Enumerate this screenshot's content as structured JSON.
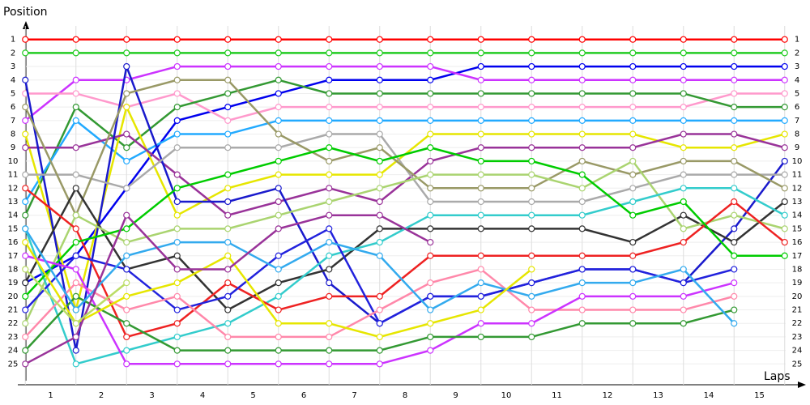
{
  "chart_data": {
    "type": "line",
    "y_label": "Position",
    "x_label": "Laps",
    "x": [
      0.5,
      1.5,
      2.5,
      3.5,
      4.5,
      5.5,
      6.5,
      7.5,
      8.5,
      9.5,
      10.5,
      11.5,
      12.5,
      13.5,
      14.5,
      15.5
    ],
    "xlim": [
      0,
      16
    ],
    "xticks": [
      1,
      2,
      3,
      4,
      5,
      6,
      7,
      8,
      9,
      10,
      11,
      12,
      13,
      14,
      15
    ],
    "ylim": [
      0,
      26
    ],
    "y_inverted": true,
    "yticks": [
      1,
      2,
      3,
      4,
      5,
      6,
      7,
      8,
      9,
      10,
      11,
      12,
      13,
      14,
      15,
      16,
      17,
      18,
      19,
      20,
      21,
      22,
      23,
      24,
      25
    ],
    "grid": true,
    "series": [
      {
        "color": "#ff0000",
        "values": [
          1,
          1,
          1,
          1,
          1,
          1,
          1,
          1,
          1,
          1,
          1,
          1,
          1,
          1,
          1,
          1
        ]
      },
      {
        "color": "#22cc22",
        "values": [
          2,
          2,
          2,
          2,
          2,
          2,
          2,
          2,
          2,
          2,
          2,
          2,
          2,
          2,
          2,
          2
        ]
      },
      {
        "color": "#0000ee",
        "values": [
          19,
          17,
          12,
          7,
          6,
          5,
          4,
          4,
          4,
          3,
          3,
          3,
          3,
          3,
          3,
          3
        ]
      },
      {
        "color": "#cc33ff",
        "values": [
          7,
          4,
          4,
          3,
          3,
          3,
          3,
          3,
          3,
          4,
          4,
          4,
          4,
          4,
          4,
          4
        ]
      },
      {
        "color": "#ff99cc",
        "values": [
          5,
          5,
          6,
          5,
          7,
          6,
          6,
          6,
          6,
          6,
          6,
          6,
          6,
          6,
          5,
          5
        ]
      },
      {
        "color": "#339933",
        "values": [
          14,
          6,
          9,
          6,
          5,
          4,
          5,
          5,
          5,
          5,
          5,
          5,
          5,
          5,
          6,
          6
        ]
      },
      {
        "color": "#22aaff",
        "values": [
          13,
          7,
          10,
          8,
          8,
          7,
          7,
          7,
          7,
          7,
          7,
          7,
          7,
          7,
          7,
          7
        ]
      },
      {
        "color": "#e6e600",
        "values": [
          8,
          21,
          6,
          14,
          12,
          11,
          11,
          11,
          8,
          8,
          8,
          8,
          8,
          9,
          9,
          8
        ]
      },
      {
        "color": "#993399",
        "values": [
          9,
          9,
          8,
          11,
          14,
          13,
          12,
          13,
          10,
          9,
          9,
          9,
          9,
          8,
          8,
          9
        ]
      },
      {
        "color": "#1a1acc",
        "values": [
          4,
          24,
          3,
          13,
          13,
          12,
          19,
          22,
          20,
          20,
          19,
          18,
          18,
          19,
          15,
          10
        ]
      },
      {
        "color": "#aaaaaa",
        "values": [
          11,
          11,
          12,
          9,
          9,
          9,
          8,
          8,
          13,
          13,
          13,
          13,
          12,
          11,
          11,
          11
        ]
      },
      {
        "color": "#999966",
        "values": [
          6,
          14,
          5,
          4,
          4,
          8,
          10,
          9,
          12,
          12,
          12,
          10,
          11,
          10,
          10,
          12
        ]
      },
      {
        "color": "#333333",
        "values": [
          19,
          12,
          18,
          17,
          21,
          19,
          18,
          15,
          15,
          15,
          15,
          15,
          16,
          14,
          16,
          13
        ]
      },
      {
        "color": "#aad470",
        "values": [
          22,
          14,
          16,
          15,
          15,
          14,
          13,
          12,
          11,
          11,
          11,
          12,
          10,
          15,
          14,
          15
        ]
      },
      {
        "color": "#33cccc",
        "values": [
          15,
          25,
          24,
          23,
          22,
          20,
          17,
          16,
          14,
          14,
          14,
          14,
          13,
          12,
          12,
          14
        ]
      },
      {
        "color": "#ee2222",
        "values": [
          12,
          15,
          23,
          22,
          19,
          21,
          20,
          20,
          17,
          17,
          17,
          17,
          17,
          16,
          13,
          16
        ]
      },
      {
        "color": "#00cc00",
        "values": [
          20,
          16,
          15,
          12,
          11,
          10,
          9,
          10,
          9,
          10,
          10,
          11,
          14,
          13,
          17,
          17
        ]
      },
      {
        "color": "#2222dd",
        "values": [
          21,
          17,
          18,
          21,
          20,
          17,
          15,
          22,
          20,
          20,
          19,
          18,
          18,
          19,
          18,
          null
        ]
      },
      {
        "color": "#ff88aa",
        "values": [
          23,
          19,
          21,
          20,
          23,
          23,
          23,
          21,
          19,
          18,
          21,
          21,
          21,
          21,
          20,
          null
        ]
      },
      {
        "color": "#cc33ff",
        "values": [
          17,
          18,
          25,
          25,
          25,
          25,
          25,
          25,
          24,
          22,
          22,
          20,
          20,
          20,
          19,
          null
        ]
      },
      {
        "color": "#339933",
        "values": [
          24,
          20,
          22,
          24,
          24,
          24,
          24,
          24,
          23,
          23,
          23,
          22,
          22,
          22,
          21,
          null
        ]
      },
      {
        "color": "#33aaee",
        "values": [
          15,
          21,
          17,
          16,
          16,
          18,
          16,
          17,
          21,
          19,
          20,
          19,
          19,
          18,
          22,
          null
        ]
      },
      {
        "color": "#e6e600",
        "values": [
          16,
          22,
          20,
          19,
          17,
          22,
          22,
          23,
          22,
          21,
          18,
          null,
          null,
          null,
          null,
          null
        ]
      },
      {
        "color": "#993399",
        "values": [
          25,
          23,
          14,
          18,
          18,
          15,
          14,
          14,
          16,
          null,
          null,
          null,
          null,
          null,
          null,
          null
        ]
      },
      {
        "color": "#bbdd66",
        "values": [
          18,
          22,
          19,
          null,
          null,
          null,
          null,
          null,
          null,
          null,
          null,
          null,
          null,
          null,
          null,
          null
        ]
      }
    ]
  }
}
